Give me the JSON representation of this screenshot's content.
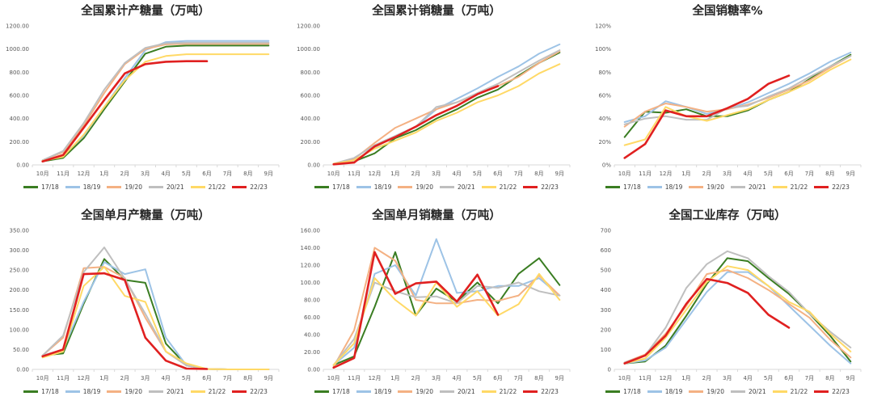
{
  "chart_data": [
    {
      "type": "line",
      "title": "全国累计产糖量（万吨）",
      "categories": [
        "10月",
        "11月",
        "12月",
        "1月",
        "2月",
        "3月",
        "4月",
        "5月",
        "6月",
        "7月",
        "8月",
        "9月"
      ],
      "yticks": [
        "0.00",
        "200.00",
        "400.00",
        "600.00",
        "800.00",
        "1000.00",
        "1200.00"
      ],
      "ylim": [
        0,
        1200
      ],
      "series": [
        {
          "name": "17/18",
          "color": "#3a7d22",
          "values": [
            30,
            60,
            230,
            480,
            720,
            960,
            1020,
            1030,
            1030,
            1030,
            1030,
            1030
          ]
        },
        {
          "name": "18/19",
          "color": "#9dc3e6",
          "values": [
            35,
            80,
            250,
            500,
            750,
            990,
            1060,
            1070,
            1070,
            1070,
            1070,
            1070
          ]
        },
        {
          "name": "19/20",
          "color": "#f4b183",
          "values": [
            40,
            110,
            340,
            620,
            870,
            1000,
            1040,
            1045,
            1045,
            1045,
            1045,
            1045
          ]
        },
        {
          "name": "20/21",
          "color": "#bfbfbf",
          "values": [
            40,
            120,
            360,
            650,
            880,
            1010,
            1050,
            1055,
            1055,
            1055,
            1055,
            1055
          ]
        },
        {
          "name": "21/22",
          "color": "#ffd966",
          "values": [
            35,
            70,
            260,
            500,
            730,
            890,
            940,
            955,
            955,
            955,
            955,
            955
          ]
        },
        {
          "name": "22/23",
          "color": "#e02020",
          "values": [
            30,
            85,
            320,
            560,
            790,
            870,
            890,
            895,
            895,
            null,
            null,
            null
          ]
        }
      ]
    },
    {
      "type": "line",
      "title": "全国累计销糖量（万吨）",
      "categories": [
        "10月",
        "11月",
        "12月",
        "1月",
        "2月",
        "3月",
        "4月",
        "5月",
        "6月",
        "7月",
        "8月",
        "9月"
      ],
      "yticks": [
        "0.00",
        "200.00",
        "400.00",
        "600.00",
        "800.00",
        "1000.00",
        "1200.00"
      ],
      "ylim": [
        0,
        1200
      ],
      "series": [
        {
          "name": "17/18",
          "color": "#3a7d22",
          "values": [
            5,
            30,
            100,
            230,
            300,
            400,
            480,
            580,
            650,
            770,
            880,
            970
          ]
        },
        {
          "name": "18/19",
          "color": "#9dc3e6",
          "values": [
            5,
            30,
            150,
            250,
            330,
            480,
            570,
            660,
            760,
            850,
            960,
            1040
          ]
        },
        {
          "name": "19/20",
          "color": "#f4b183",
          "values": [
            10,
            50,
            190,
            320,
            400,
            480,
            540,
            610,
            680,
            760,
            880,
            980
          ]
        },
        {
          "name": "20/21",
          "color": "#bfbfbf",
          "values": [
            10,
            60,
            170,
            250,
            330,
            500,
            540,
            620,
            700,
            800,
            900,
            990
          ]
        },
        {
          "name": "21/22",
          "color": "#ffd966",
          "values": [
            10,
            40,
            140,
            210,
            280,
            380,
            450,
            540,
            600,
            680,
            790,
            870
          ]
        },
        {
          "name": "22/23",
          "color": "#e02020",
          "values": [
            5,
            20,
            160,
            240,
            330,
            430,
            510,
            610,
            680,
            null,
            null,
            null
          ]
        }
      ]
    },
    {
      "type": "line",
      "title": "全国销糖率%",
      "categories": [
        "10月",
        "11月",
        "12月",
        "1月",
        "2月",
        "3月",
        "4月",
        "5月",
        "6月",
        "7月",
        "8月",
        "9月"
      ],
      "yticks": [
        "0%",
        "20%",
        "40%",
        "60%",
        "80%",
        "100%",
        "120%"
      ],
      "ylim": [
        0,
        120
      ],
      "series": [
        {
          "name": "17/18",
          "color": "#3a7d22",
          "values": [
            24,
            46,
            45,
            48,
            42,
            42,
            47,
            56,
            63,
            74,
            85,
            95
          ]
        },
        {
          "name": "18/19",
          "color": "#9dc3e6",
          "values": [
            37,
            42,
            55,
            50,
            44,
            48,
            54,
            62,
            70,
            79,
            89,
            97
          ]
        },
        {
          "name": "19/20",
          "color": "#f4b183",
          "values": [
            33,
            46,
            53,
            50,
            46,
            48,
            52,
            58,
            65,
            73,
            84,
            94
          ]
        },
        {
          "name": "20/21",
          "color": "#bfbfbf",
          "values": [
            35,
            40,
            42,
            39,
            39,
            49,
            51,
            59,
            66,
            76,
            85,
            94
          ]
        },
        {
          "name": "21/22",
          "color": "#ffd966",
          "values": [
            17,
            22,
            50,
            42,
            38,
            43,
            48,
            56,
            63,
            71,
            82,
            91
          ]
        },
        {
          "name": "22/23",
          "color": "#e02020",
          "values": [
            6,
            18,
            47,
            42,
            42,
            49,
            57,
            70,
            77,
            null,
            null,
            null
          ]
        }
      ]
    },
    {
      "type": "line",
      "title": "全国单月产糖量（万吨）",
      "categories": [
        "10月",
        "11月",
        "12月",
        "1月",
        "2月",
        "3月",
        "4月",
        "5月",
        "6月",
        "7月",
        "8月",
        "9月"
      ],
      "yticks": [
        "0.00",
        "50.00",
        "100.00",
        "150.00",
        "200.00",
        "250.00",
        "300.00",
        "350.00"
      ],
      "ylim": [
        0,
        350
      ],
      "series": [
        {
          "name": "17/18",
          "color": "#3a7d22",
          "values": [
            35,
            40,
            165,
            278,
            225,
            218,
            65,
            10,
            1,
            0,
            0,
            0
          ]
        },
        {
          "name": "18/19",
          "color": "#9dc3e6",
          "values": [
            35,
            50,
            170,
            270,
            240,
            252,
            80,
            10,
            1,
            0,
            0,
            0
          ]
        },
        {
          "name": "19/20",
          "color": "#f4b183",
          "values": [
            35,
            80,
            255,
            258,
            230,
            130,
            45,
            10,
            1,
            0,
            0,
            0
          ]
        },
        {
          "name": "20/21",
          "color": "#bfbfbf",
          "values": [
            35,
            85,
            245,
            307,
            228,
            140,
            45,
            10,
            1,
            0,
            0,
            0
          ]
        },
        {
          "name": "21/22",
          "color": "#ffd966",
          "values": [
            30,
            45,
            210,
            258,
            185,
            170,
            45,
            15,
            1,
            0,
            0,
            0
          ]
        },
        {
          "name": "22/23",
          "color": "#e02020",
          "values": [
            33,
            50,
            240,
            242,
            225,
            80,
            22,
            2,
            1,
            null,
            null,
            null
          ]
        }
      ]
    },
    {
      "type": "line",
      "title": "全国单月销糖量（万吨）",
      "categories": [
        "10月",
        "11月",
        "12月",
        "1月",
        "2月",
        "3月",
        "4月",
        "5月",
        "6月",
        "7月",
        "8月",
        "9月"
      ],
      "yticks": [
        "0.00",
        "20.00",
        "40.00",
        "60.00",
        "80.00",
        "100.00",
        "120.00",
        "140.00",
        "160.00"
      ],
      "ylim": [
        0,
        160
      ],
      "series": [
        {
          "name": "17/18",
          "color": "#3a7d22",
          "values": [
            5,
            15,
            72,
            135,
            62,
            93,
            78,
            100,
            76,
            110,
            128,
            97
          ]
        },
        {
          "name": "18/19",
          "color": "#9dc3e6",
          "values": [
            5,
            25,
            110,
            120,
            85,
            150,
            88,
            90,
            96,
            96,
            105,
            85
          ]
        },
        {
          "name": "19/20",
          "color": "#f4b183",
          "values": [
            3,
            45,
            140,
            125,
            80,
            76,
            76,
            80,
            79,
            85,
            108,
            85
          ]
        },
        {
          "name": "20/21",
          "color": "#bfbfbf",
          "values": [
            5,
            35,
            100,
            90,
            83,
            84,
            76,
            96,
            94,
            100,
            90,
            85
          ]
        },
        {
          "name": "21/22",
          "color": "#ffd966",
          "values": [
            5,
            30,
            105,
            80,
            62,
            100,
            72,
            90,
            62,
            75,
            110,
            80
          ]
        },
        {
          "name": "22/23",
          "color": "#e02020",
          "values": [
            2,
            13,
            135,
            87,
            99,
            101,
            78,
            109,
            63,
            null,
            null,
            null
          ]
        }
      ]
    },
    {
      "type": "line",
      "title": "全国工业库存（万吨）",
      "categories": [
        "10月",
        "11月",
        "12月",
        "1月",
        "2月",
        "3月",
        "4月",
        "5月",
        "6月",
        "7月",
        "8月",
        "9月"
      ],
      "yticks": [
        "0",
        "100",
        "200",
        "300",
        "400",
        "500",
        "600",
        "700"
      ],
      "ylim": [
        0,
        700
      ],
      "series": [
        {
          "name": "17/18",
          "color": "#3a7d22",
          "values": [
            30,
            40,
            120,
            270,
            430,
            560,
            545,
            460,
            380,
            280,
            170,
            40
          ]
        },
        {
          "name": "18/19",
          "color": "#9dc3e6",
          "values": [
            30,
            45,
            110,
            250,
            390,
            490,
            490,
            420,
            320,
            220,
            120,
            30
          ]
        },
        {
          "name": "19/20",
          "color": "#f4b183",
          "values": [
            35,
            75,
            180,
            320,
            480,
            500,
            460,
            400,
            330,
            260,
            150,
            60
          ]
        },
        {
          "name": "20/21",
          "color": "#bfbfbf",
          "values": [
            35,
            70,
            210,
            410,
            530,
            595,
            560,
            470,
            390,
            280,
            190,
            110
          ]
        },
        {
          "name": "21/22",
          "color": "#ffd966",
          "values": [
            30,
            55,
            160,
            300,
            440,
            520,
            500,
            420,
            340,
            290,
            180,
            90
          ]
        },
        {
          "name": "22/23",
          "color": "#e02020",
          "values": [
            30,
            70,
            170,
            330,
            455,
            435,
            385,
            275,
            210,
            null,
            null,
            null
          ]
        }
      ]
    }
  ]
}
